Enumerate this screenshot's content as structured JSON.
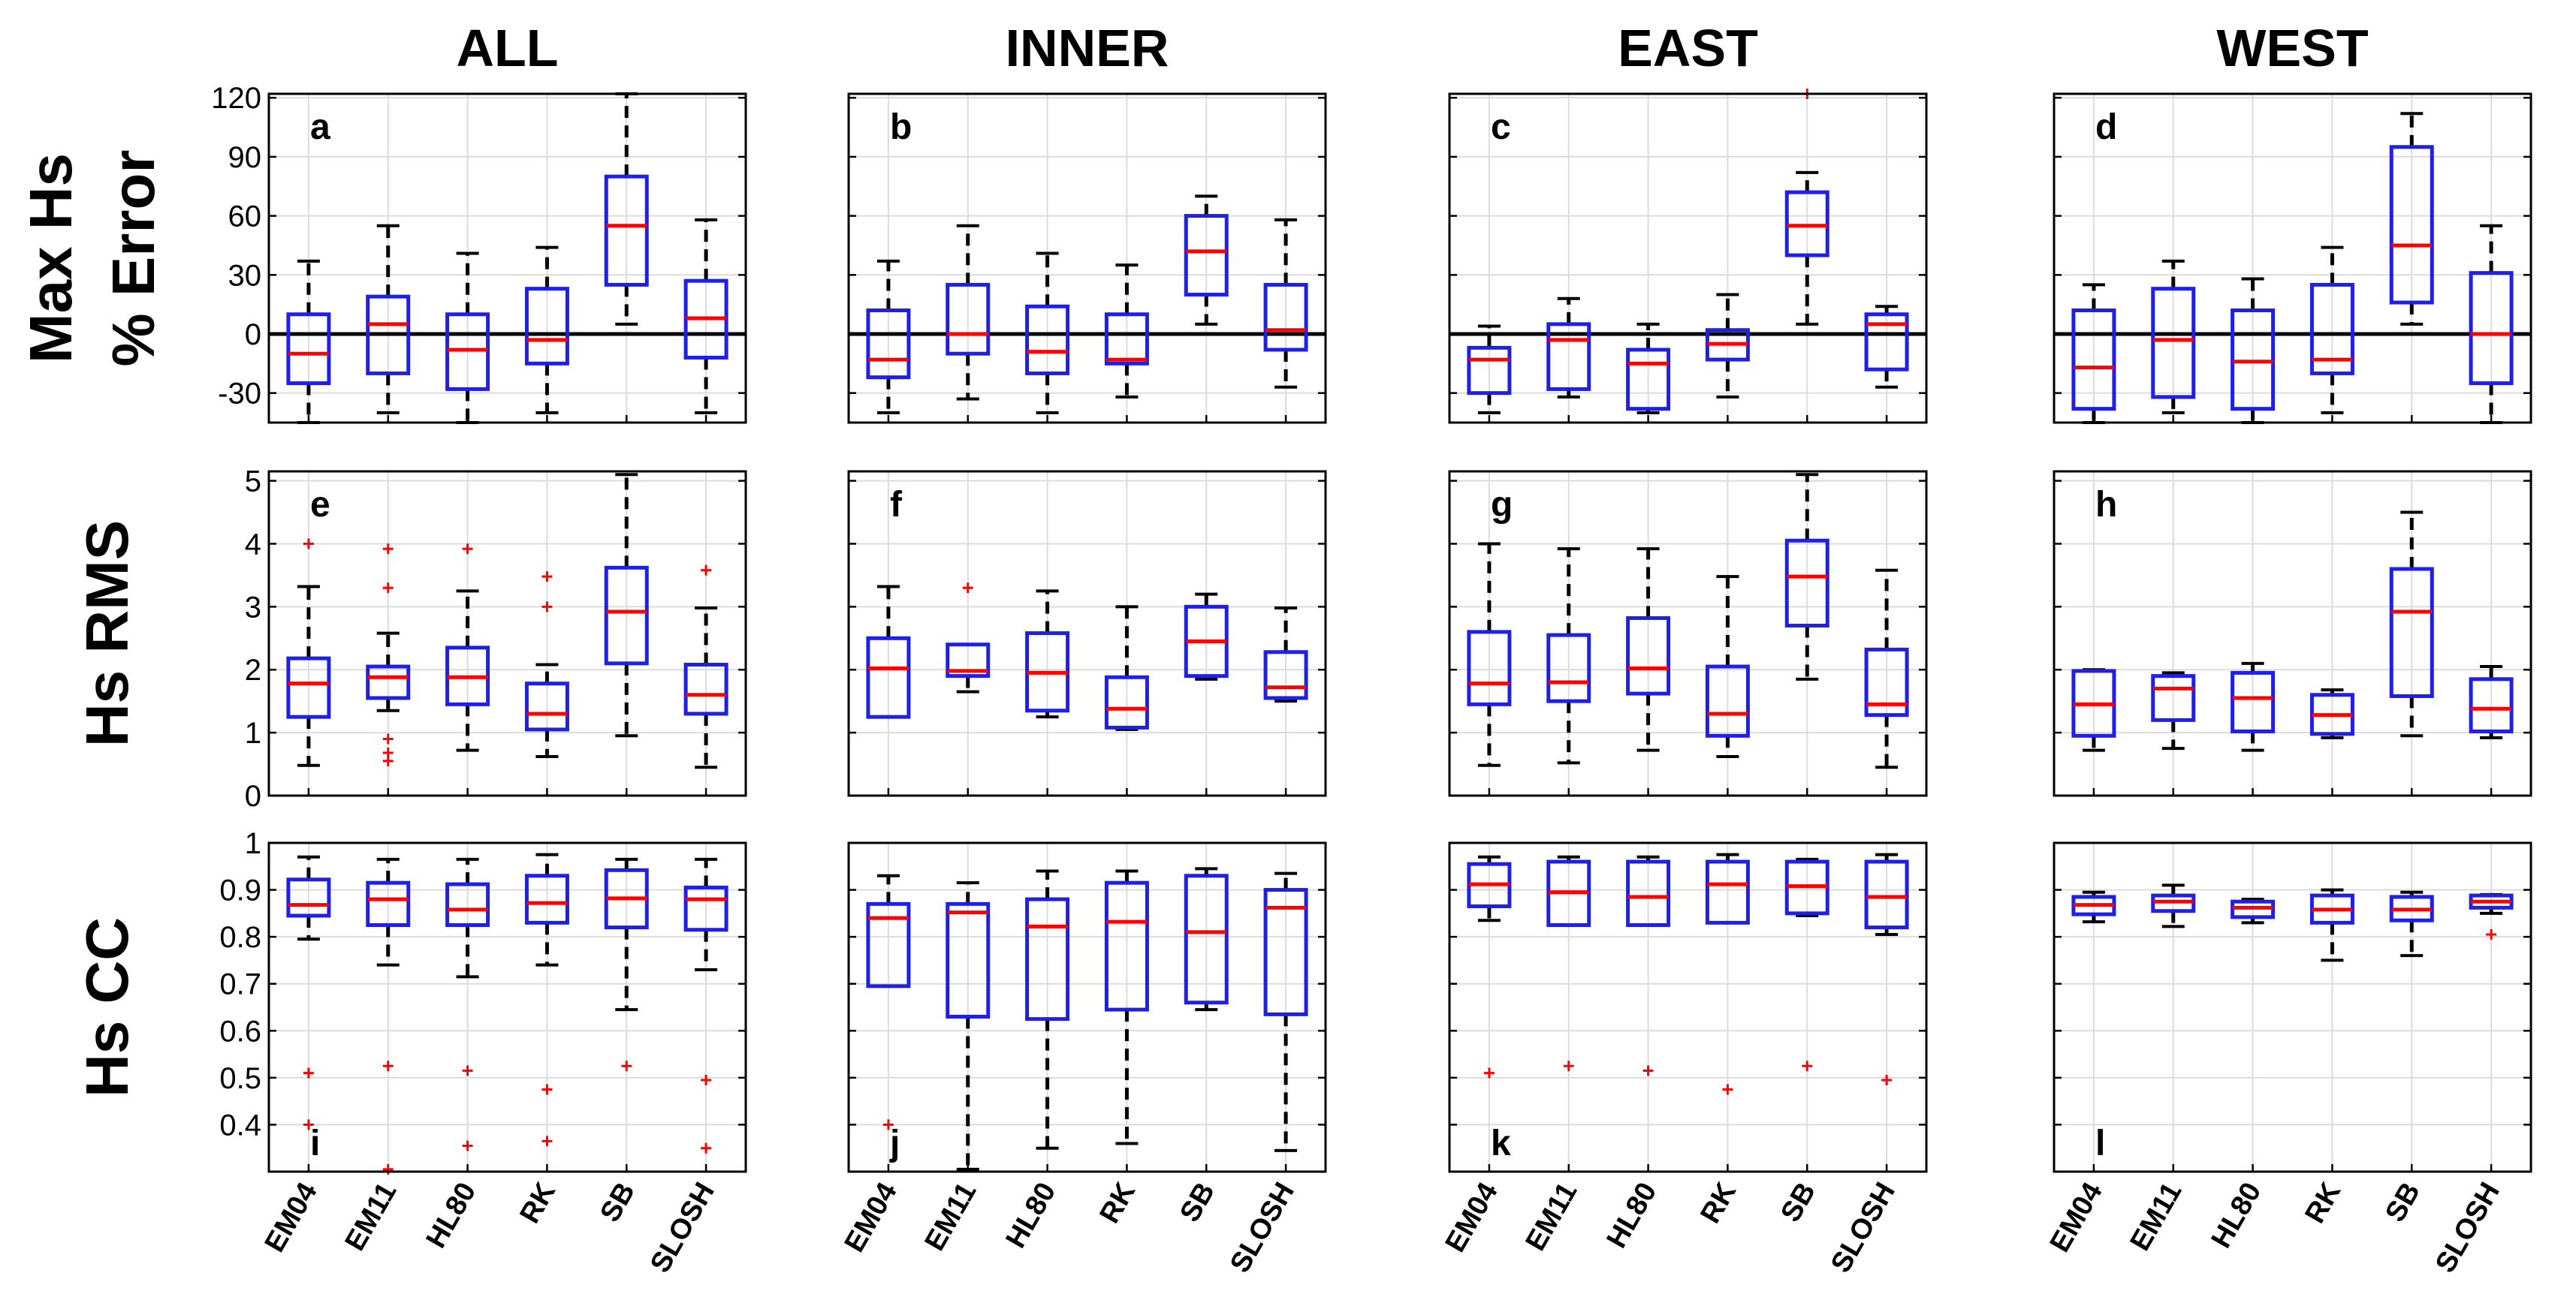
{
  "chart_data": {
    "type": "boxplot",
    "columns": [
      "ALL",
      "INNER",
      "EAST",
      "WEST"
    ],
    "categories": [
      "EM04",
      "EM11",
      "HL80",
      "RK",
      "SB",
      "SLOSH"
    ],
    "colors": {
      "box": "#1f1fe6",
      "median": "#ff0000",
      "whisker": "#000000",
      "outlier": "#ff0000",
      "grid": "#dcdcdc",
      "zero_line": "#000000"
    },
    "rows": [
      {
        "label_lines": [
          "Max Hs",
          "% Error"
        ],
        "ylim": [
          -45,
          122
        ],
        "ticks": [
          -30,
          0,
          30,
          60,
          90,
          120
        ],
        "tick_labels": [
          "-30",
          "0",
          "30",
          "60",
          "90",
          "120"
        ],
        "zero_line": true,
        "panels": [
          {
            "letter": "a",
            "stats": [
              {
                "q1": -25,
                "median": -10,
                "q3": 10,
                "lo": -45,
                "hi": 37,
                "outliers": []
              },
              {
                "q1": -20,
                "median": 5,
                "q3": 19,
                "lo": -40,
                "hi": 55,
                "outliers": []
              },
              {
                "q1": -28,
                "median": -8,
                "q3": 10,
                "lo": -45,
                "hi": 41,
                "outliers": []
              },
              {
                "q1": -15,
                "median": -3,
                "q3": 23,
                "lo": -40,
                "hi": 44,
                "outliers": []
              },
              {
                "q1": 25,
                "median": 55,
                "q3": 80,
                "lo": 5,
                "hi": 122,
                "outliers": []
              },
              {
                "q1": -12,
                "median": 8,
                "q3": 27,
                "lo": -40,
                "hi": 58,
                "outliers": []
              }
            ]
          },
          {
            "letter": "b",
            "stats": [
              {
                "q1": -22,
                "median": -13,
                "q3": 12,
                "lo": -40,
                "hi": 37,
                "outliers": []
              },
              {
                "q1": -10,
                "median": 0,
                "q3": 25,
                "lo": -33,
                "hi": 55,
                "outliers": []
              },
              {
                "q1": -20,
                "median": -9,
                "q3": 14,
                "lo": -40,
                "hi": 41,
                "outliers": []
              },
              {
                "q1": -15,
                "median": -13,
                "q3": 10,
                "lo": -32,
                "hi": 35,
                "outliers": []
              },
              {
                "q1": 20,
                "median": 42,
                "q3": 60,
                "lo": 5,
                "hi": 70,
                "outliers": []
              },
              {
                "q1": -8,
                "median": 2,
                "q3": 25,
                "lo": -27,
                "hi": 58,
                "outliers": []
              }
            ]
          },
          {
            "letter": "c",
            "stats": [
              {
                "q1": -30,
                "median": -13,
                "q3": -7,
                "lo": -40,
                "hi": 4,
                "outliers": []
              },
              {
                "q1": -28,
                "median": -3,
                "q3": 5,
                "lo": -32,
                "hi": 18,
                "outliers": []
              },
              {
                "q1": -38,
                "median": -15,
                "q3": -8,
                "lo": -40,
                "hi": 5,
                "outliers": []
              },
              {
                "q1": -13,
                "median": -5,
                "q3": 2,
                "lo": -32,
                "hi": 20,
                "outliers": []
              },
              {
                "q1": 40,
                "median": 55,
                "q3": 72,
                "lo": 5,
                "hi": 82,
                "outliers": [
                  122
                ]
              },
              {
                "q1": -18,
                "median": 5,
                "q3": 10,
                "lo": -27,
                "hi": 14,
                "outliers": []
              }
            ]
          },
          {
            "letter": "d",
            "stats": [
              {
                "q1": -38,
                "median": -17,
                "q3": 12,
                "lo": -45,
                "hi": 25,
                "outliers": []
              },
              {
                "q1": -32,
                "median": -3,
                "q3": 23,
                "lo": -40,
                "hi": 37,
                "outliers": []
              },
              {
                "q1": -38,
                "median": -14,
                "q3": 12,
                "lo": -45,
                "hi": 28,
                "outliers": []
              },
              {
                "q1": -20,
                "median": -13,
                "q3": 25,
                "lo": -40,
                "hi": 44,
                "outliers": []
              },
              {
                "q1": 16,
                "median": 45,
                "q3": 95,
                "lo": 5,
                "hi": 112,
                "outliers": []
              },
              {
                "q1": -25,
                "median": 0,
                "q3": 31,
                "lo": -45,
                "hi": 55,
                "outliers": []
              }
            ]
          }
        ]
      },
      {
        "label_lines": [
          "Hs RMS"
        ],
        "ylim": [
          0,
          5.15
        ],
        "ticks": [
          0,
          1,
          2,
          3,
          4,
          5
        ],
        "tick_labels": [
          "0",
          "1",
          "2",
          "3",
          "4",
          "5"
        ],
        "zero_line": false,
        "panels": [
          {
            "letter": "e",
            "stats": [
              {
                "q1": 1.25,
                "median": 1.78,
                "q3": 2.18,
                "lo": 0.48,
                "hi": 3.32,
                "outliers": [
                  4.0
                ]
              },
              {
                "q1": 1.55,
                "median": 1.88,
                "q3": 2.05,
                "lo": 1.35,
                "hi": 2.58,
                "outliers": [
                  0.55,
                  0.68,
                  0.9,
                  3.3,
                  3.92
                ]
              },
              {
                "q1": 1.45,
                "median": 1.88,
                "q3": 2.35,
                "lo": 0.72,
                "hi": 3.25,
                "outliers": [
                  3.92
                ]
              },
              {
                "q1": 1.05,
                "median": 1.3,
                "q3": 1.78,
                "lo": 0.62,
                "hi": 2.08,
                "outliers": [
                  3.0,
                  3.48
                ]
              },
              {
                "q1": 2.1,
                "median": 2.92,
                "q3": 3.62,
                "lo": 0.95,
                "hi": 5.1,
                "outliers": []
              },
              {
                "q1": 1.3,
                "median": 1.6,
                "q3": 2.08,
                "lo": 0.45,
                "hi": 2.98,
                "outliers": [
                  3.58
                ]
              }
            ]
          },
          {
            "letter": "f",
            "stats": [
              {
                "q1": 1.25,
                "median": 2.02,
                "q3": 2.5,
                "lo": 1.25,
                "hi": 3.32,
                "outliers": []
              },
              {
                "q1": 1.9,
                "median": 1.98,
                "q3": 2.4,
                "lo": 1.65,
                "hi": 2.4,
                "outliers": [
                  3.3
                ]
              },
              {
                "q1": 1.35,
                "median": 1.95,
                "q3": 2.58,
                "lo": 1.25,
                "hi": 3.25,
                "outliers": []
              },
              {
                "q1": 1.08,
                "median": 1.38,
                "q3": 1.88,
                "lo": 1.05,
                "hi": 3.0,
                "outliers": []
              },
              {
                "q1": 1.9,
                "median": 2.45,
                "q3": 3.0,
                "lo": 1.85,
                "hi": 3.2,
                "outliers": []
              },
              {
                "q1": 1.55,
                "median": 1.72,
                "q3": 2.28,
                "lo": 1.5,
                "hi": 2.98,
                "outliers": []
              }
            ]
          },
          {
            "letter": "g",
            "stats": [
              {
                "q1": 1.45,
                "median": 1.78,
                "q3": 2.6,
                "lo": 0.48,
                "hi": 4.0,
                "outliers": []
              },
              {
                "q1": 1.5,
                "median": 1.8,
                "q3": 2.55,
                "lo": 0.52,
                "hi": 3.92,
                "outliers": []
              },
              {
                "q1": 1.62,
                "median": 2.02,
                "q3": 2.82,
                "lo": 0.72,
                "hi": 3.92,
                "outliers": []
              },
              {
                "q1": 0.95,
                "median": 1.3,
                "q3": 2.05,
                "lo": 0.62,
                "hi": 3.48,
                "outliers": []
              },
              {
                "q1": 2.7,
                "median": 3.48,
                "q3": 4.05,
                "lo": 1.85,
                "hi": 5.1,
                "outliers": []
              },
              {
                "q1": 1.28,
                "median": 1.45,
                "q3": 2.32,
                "lo": 0.45,
                "hi": 3.58,
                "outliers": []
              }
            ]
          },
          {
            "letter": "h",
            "stats": [
              {
                "q1": 0.95,
                "median": 1.45,
                "q3": 1.98,
                "lo": 0.72,
                "hi": 2.0,
                "outliers": []
              },
              {
                "q1": 1.2,
                "median": 1.7,
                "q3": 1.9,
                "lo": 0.75,
                "hi": 1.95,
                "outliers": []
              },
              {
                "q1": 1.02,
                "median": 1.55,
                "q3": 1.95,
                "lo": 0.72,
                "hi": 2.1,
                "outliers": []
              },
              {
                "q1": 0.98,
                "median": 1.28,
                "q3": 1.6,
                "lo": 0.92,
                "hi": 1.68,
                "outliers": []
              },
              {
                "q1": 1.58,
                "median": 2.92,
                "q3": 3.6,
                "lo": 0.95,
                "hi": 4.5,
                "outliers": []
              },
              {
                "q1": 1.02,
                "median": 1.38,
                "q3": 1.85,
                "lo": 0.92,
                "hi": 2.05,
                "outliers": []
              }
            ]
          }
        ]
      },
      {
        "label_lines": [
          "Hs CC"
        ],
        "ylim": [
          0.3,
          1.0
        ],
        "ticks": [
          0.4,
          0.5,
          0.6,
          0.7,
          0.8,
          0.9,
          1
        ],
        "tick_labels": [
          "0.4",
          "0.5",
          "0.6",
          "0.7",
          "0.8",
          "0.9",
          "1"
        ],
        "zero_line": false,
        "panels": [
          {
            "letter": "i",
            "stats": [
              {
                "q1": 0.845,
                "median": 0.868,
                "q3": 0.922,
                "lo": 0.795,
                "hi": 0.97,
                "outliers": [
                  0.51,
                  0.4
                ]
              },
              {
                "q1": 0.825,
                "median": 0.88,
                "q3": 0.915,
                "lo": 0.74,
                "hi": 0.965,
                "outliers": [
                  0.525,
                  0.305
                ]
              },
              {
                "q1": 0.825,
                "median": 0.858,
                "q3": 0.912,
                "lo": 0.715,
                "hi": 0.965,
                "outliers": [
                  0.515,
                  0.355
                ]
              },
              {
                "q1": 0.83,
                "median": 0.872,
                "q3": 0.93,
                "lo": 0.74,
                "hi": 0.975,
                "outliers": [
                  0.475,
                  0.365
                ]
              },
              {
                "q1": 0.82,
                "median": 0.882,
                "q3": 0.942,
                "lo": 0.645,
                "hi": 0.965,
                "outliers": [
                  0.525
                ]
              },
              {
                "q1": 0.815,
                "median": 0.88,
                "q3": 0.905,
                "lo": 0.73,
                "hi": 0.965,
                "outliers": [
                  0.495,
                  0.35
                ]
              }
            ]
          },
          {
            "letter": "j",
            "stats": [
              {
                "q1": 0.695,
                "median": 0.84,
                "q3": 0.87,
                "lo": 0.695,
                "hi": 0.93,
                "outliers": [
                  0.4
                ]
              },
              {
                "q1": 0.63,
                "median": 0.852,
                "q3": 0.87,
                "lo": 0.305,
                "hi": 0.915,
                "outliers": []
              },
              {
                "q1": 0.625,
                "median": 0.822,
                "q3": 0.88,
                "lo": 0.35,
                "hi": 0.94,
                "outliers": []
              },
              {
                "q1": 0.645,
                "median": 0.832,
                "q3": 0.915,
                "lo": 0.36,
                "hi": 0.94,
                "outliers": []
              },
              {
                "q1": 0.66,
                "median": 0.81,
                "q3": 0.93,
                "lo": 0.645,
                "hi": 0.945,
                "outliers": []
              },
              {
                "q1": 0.635,
                "median": 0.862,
                "q3": 0.9,
                "lo": 0.345,
                "hi": 0.935,
                "outliers": []
              }
            ]
          },
          {
            "letter": "k",
            "stats": [
              {
                "q1": 0.865,
                "median": 0.912,
                "q3": 0.955,
                "lo": 0.835,
                "hi": 0.97,
                "outliers": [
                  0.51
                ]
              },
              {
                "q1": 0.825,
                "median": 0.895,
                "q3": 0.96,
                "lo": 0.825,
                "hi": 0.97,
                "outliers": [
                  0.525
                ]
              },
              {
                "q1": 0.825,
                "median": 0.885,
                "q3": 0.96,
                "lo": 0.825,
                "hi": 0.97,
                "outliers": [
                  0.515
                ]
              },
              {
                "q1": 0.83,
                "median": 0.912,
                "q3": 0.96,
                "lo": 0.83,
                "hi": 0.975,
                "outliers": [
                  0.475
                ]
              },
              {
                "q1": 0.85,
                "median": 0.908,
                "q3": 0.96,
                "lo": 0.845,
                "hi": 0.965,
                "outliers": [
                  0.525
                ]
              },
              {
                "q1": 0.82,
                "median": 0.885,
                "q3": 0.96,
                "lo": 0.805,
                "hi": 0.975,
                "outliers": [
                  0.495
                ]
              }
            ]
          },
          {
            "letter": "l",
            "stats": [
              {
                "q1": 0.848,
                "median": 0.868,
                "q3": 0.885,
                "lo": 0.832,
                "hi": 0.895,
                "outliers": []
              },
              {
                "q1": 0.855,
                "median": 0.875,
                "q3": 0.888,
                "lo": 0.822,
                "hi": 0.91,
                "outliers": []
              },
              {
                "q1": 0.842,
                "median": 0.862,
                "q3": 0.875,
                "lo": 0.83,
                "hi": 0.88,
                "outliers": []
              },
              {
                "q1": 0.83,
                "median": 0.858,
                "q3": 0.888,
                "lo": 0.75,
                "hi": 0.9,
                "outliers": []
              },
              {
                "q1": 0.835,
                "median": 0.858,
                "q3": 0.885,
                "lo": 0.76,
                "hi": 0.895,
                "outliers": []
              },
              {
                "q1": 0.862,
                "median": 0.875,
                "q3": 0.888,
                "lo": 0.85,
                "hi": 0.89,
                "outliers": [
                  0.805
                ]
              }
            ]
          }
        ]
      }
    ]
  }
}
